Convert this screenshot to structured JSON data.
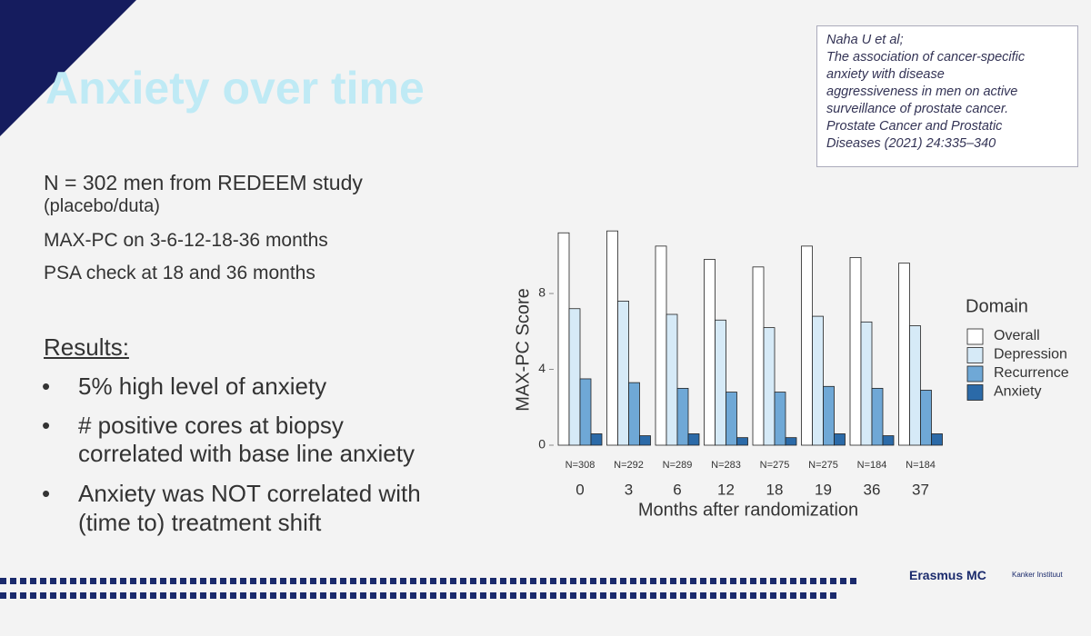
{
  "slide": {
    "title": "Anxiety over time",
    "intro": [
      "N = 302 men from REDEEM study",
      "(placebo/duta)",
      "MAX-PC on 3-6-12-18-36 months",
      "PSA check at 18 and 36 months"
    ],
    "results_heading": "Results:",
    "bullets": [
      "5% high level of anxiety",
      "# positive cores at biopsy",
      "correlated with base line anxiety",
      "Anxiety was NOT correlated with",
      "(time to) treatment shift"
    ],
    "citation": [
      "Naha U et al;",
      "The association of cancer-specific",
      "anxiety with disease",
      "aggressiveness in men on active",
      "surveillance of prostate cancer.",
      "Prostate Cancer and Prostatic",
      "Diseases (2021) 24:335–340"
    ],
    "logo": "Erasmus MC",
    "logo_sub": "Kanker Instituut"
  },
  "chart_data": {
    "type": "bar",
    "y_label": "MAX-PC Score",
    "x_label": "Months after randomization",
    "legend_title": "Domain",
    "categories": [
      "0",
      "3",
      "6",
      "12",
      "18",
      "19",
      "36",
      "37"
    ],
    "n_labels": [
      "N=308",
      "N=292",
      "N=289",
      "N=283",
      "N=275",
      "N=275",
      "N=184",
      "N=184"
    ],
    "ylim": [
      0,
      11.5
    ],
    "yticks": [
      0,
      4,
      8
    ],
    "series": [
      {
        "name": "Overall",
        "color": "#ffffff",
        "values": [
          11.2,
          11.3,
          10.5,
          9.8,
          9.4,
          10.5,
          9.9,
          9.6
        ]
      },
      {
        "name": "Depression",
        "color": "#d6eaf7",
        "values": [
          7.2,
          7.6,
          6.9,
          6.6,
          6.2,
          6.8,
          6.5,
          6.3
        ]
      },
      {
        "name": "Recurrence",
        "color": "#6fa8d6",
        "values": [
          3.5,
          3.3,
          3.0,
          2.8,
          2.8,
          3.1,
          3.0,
          2.9
        ]
      },
      {
        "name": "Anxiety",
        "color": "#2b6aa8",
        "values": [
          0.6,
          0.5,
          0.6,
          0.4,
          0.4,
          0.6,
          0.5,
          0.6
        ]
      }
    ]
  }
}
